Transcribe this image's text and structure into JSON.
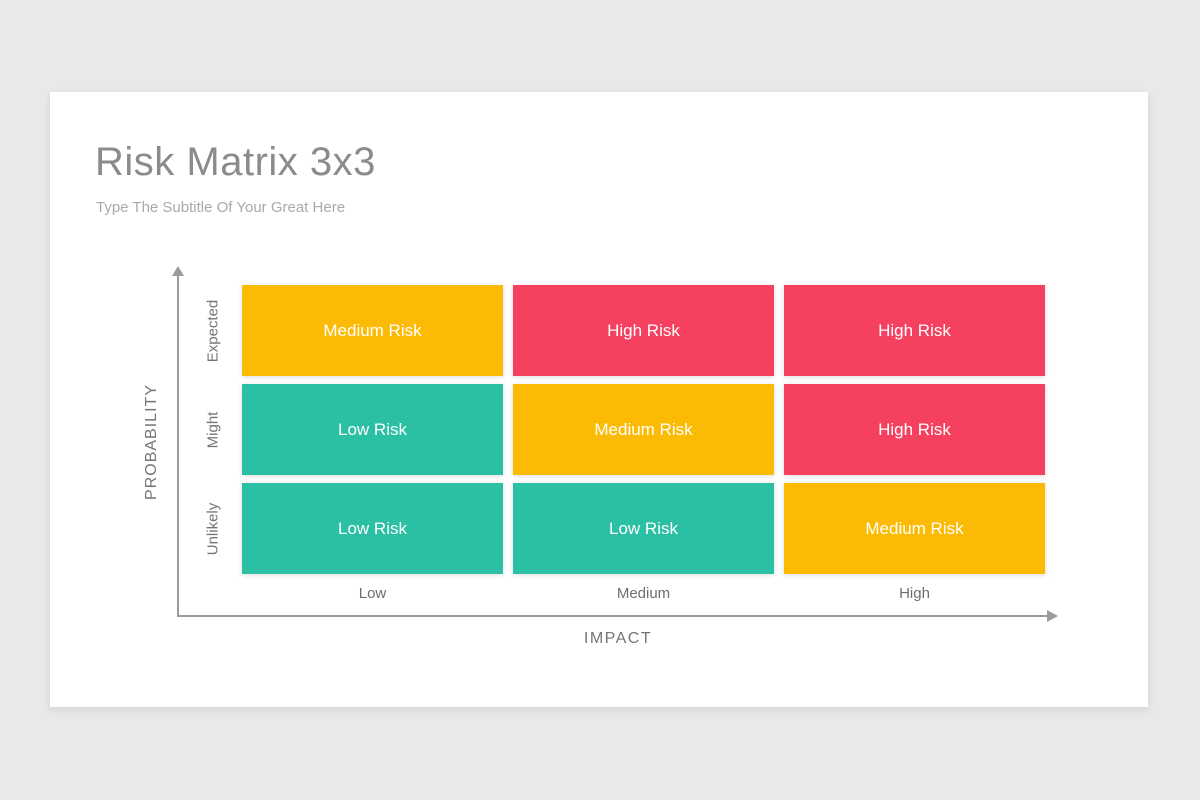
{
  "slide": {
    "title": "Risk Matrix 3x3",
    "subtitle": "Type The Subtitle Of Your Great Here"
  },
  "matrix": {
    "x_axis": {
      "label": "IMPACT",
      "categories": [
        "Low",
        "Medium",
        "High"
      ]
    },
    "y_axis": {
      "label": "PROBABILITY",
      "categories": [
        "Expected",
        "Might",
        "Unlikely"
      ]
    },
    "rows": [
      {
        "probability": "Expected",
        "cells": [
          {
            "label": "Medium Risk",
            "level": "medium"
          },
          {
            "label": "High Risk",
            "level": "high"
          },
          {
            "label": "High Risk",
            "level": "high"
          }
        ]
      },
      {
        "probability": "Might",
        "cells": [
          {
            "label": "Low Risk",
            "level": "low"
          },
          {
            "label": "Medium Risk",
            "level": "medium"
          },
          {
            "label": "High Risk",
            "level": "high"
          }
        ]
      },
      {
        "probability": "Unlikely",
        "cells": [
          {
            "label": "Low Risk",
            "level": "low"
          },
          {
            "label": "Low Risk",
            "level": "low"
          },
          {
            "label": "Medium Risk",
            "level": "medium"
          }
        ]
      }
    ],
    "level_colors": {
      "low": "#2BBFA4",
      "medium": "#FBBB04",
      "high": "#F5415F"
    }
  }
}
